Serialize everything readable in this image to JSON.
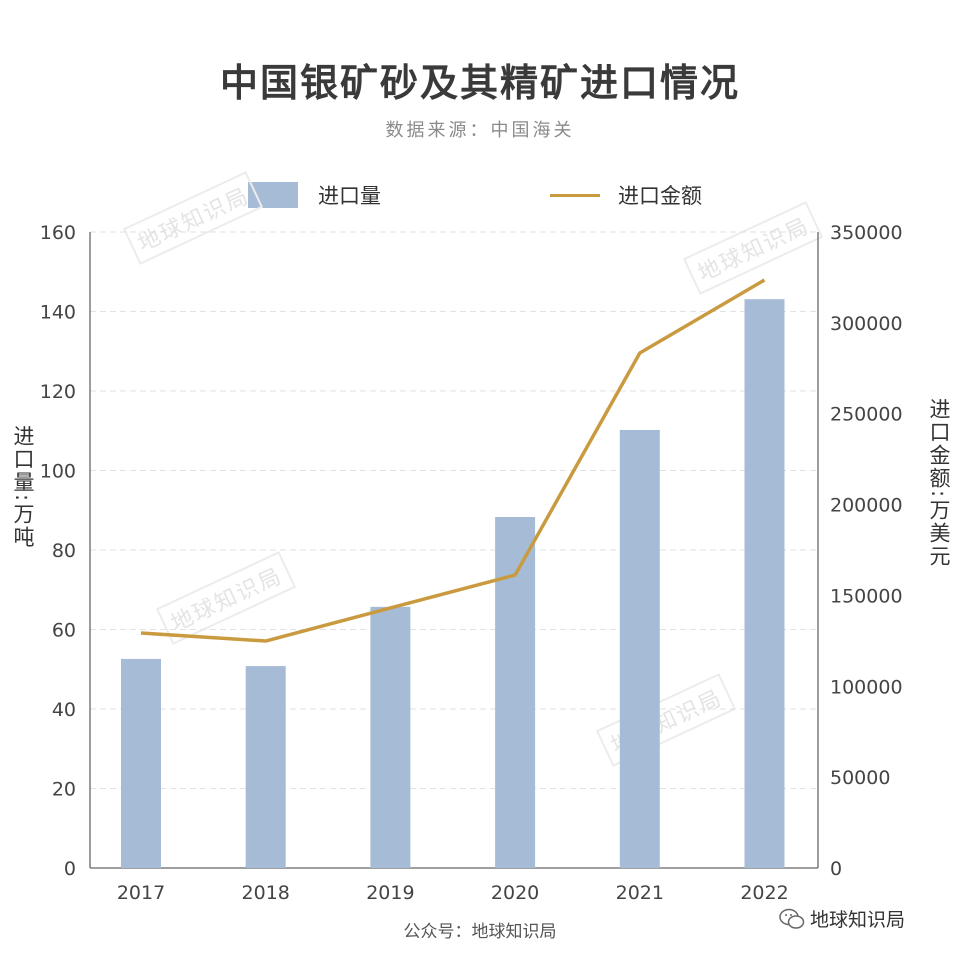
{
  "chart_data": {
    "type": "bar+line",
    "title": "中国银矿砂及其精矿进口情况",
    "subtitle": "数据来源：中国海关",
    "categories": [
      "2017",
      "2018",
      "2019",
      "2020",
      "2021",
      "2022"
    ],
    "series": [
      {
        "name": "进口量",
        "type": "bar",
        "axis": "left",
        "color": "#a6bcd6",
        "values": [
          52.6,
          50.8,
          65.7,
          88.3,
          110.2,
          143.1
        ]
      },
      {
        "name": "进口金额",
        "type": "line",
        "axis": "right",
        "color": "#c99a3f",
        "values": [
          129300,
          124900,
          143100,
          161200,
          283400,
          323600
        ]
      }
    ],
    "ylabel_left": "进口量:万吨",
    "ylabel_right": "进口金额:万美元",
    "ylim_left": [
      0,
      160
    ],
    "ylim_right": [
      0,
      350000
    ],
    "yticks_left": [
      "0",
      "20",
      "40",
      "60",
      "80",
      "100",
      "120",
      "140",
      "160"
    ],
    "yticks_right": [
      "0",
      "50000",
      "100000",
      "150000",
      "200000",
      "250000",
      "300000",
      "350000"
    ],
    "grid": true,
    "legend_position": "top-center"
  },
  "footer": "公众号：地球知识局",
  "brand": "地球知识局",
  "watermark": "地球知识局"
}
